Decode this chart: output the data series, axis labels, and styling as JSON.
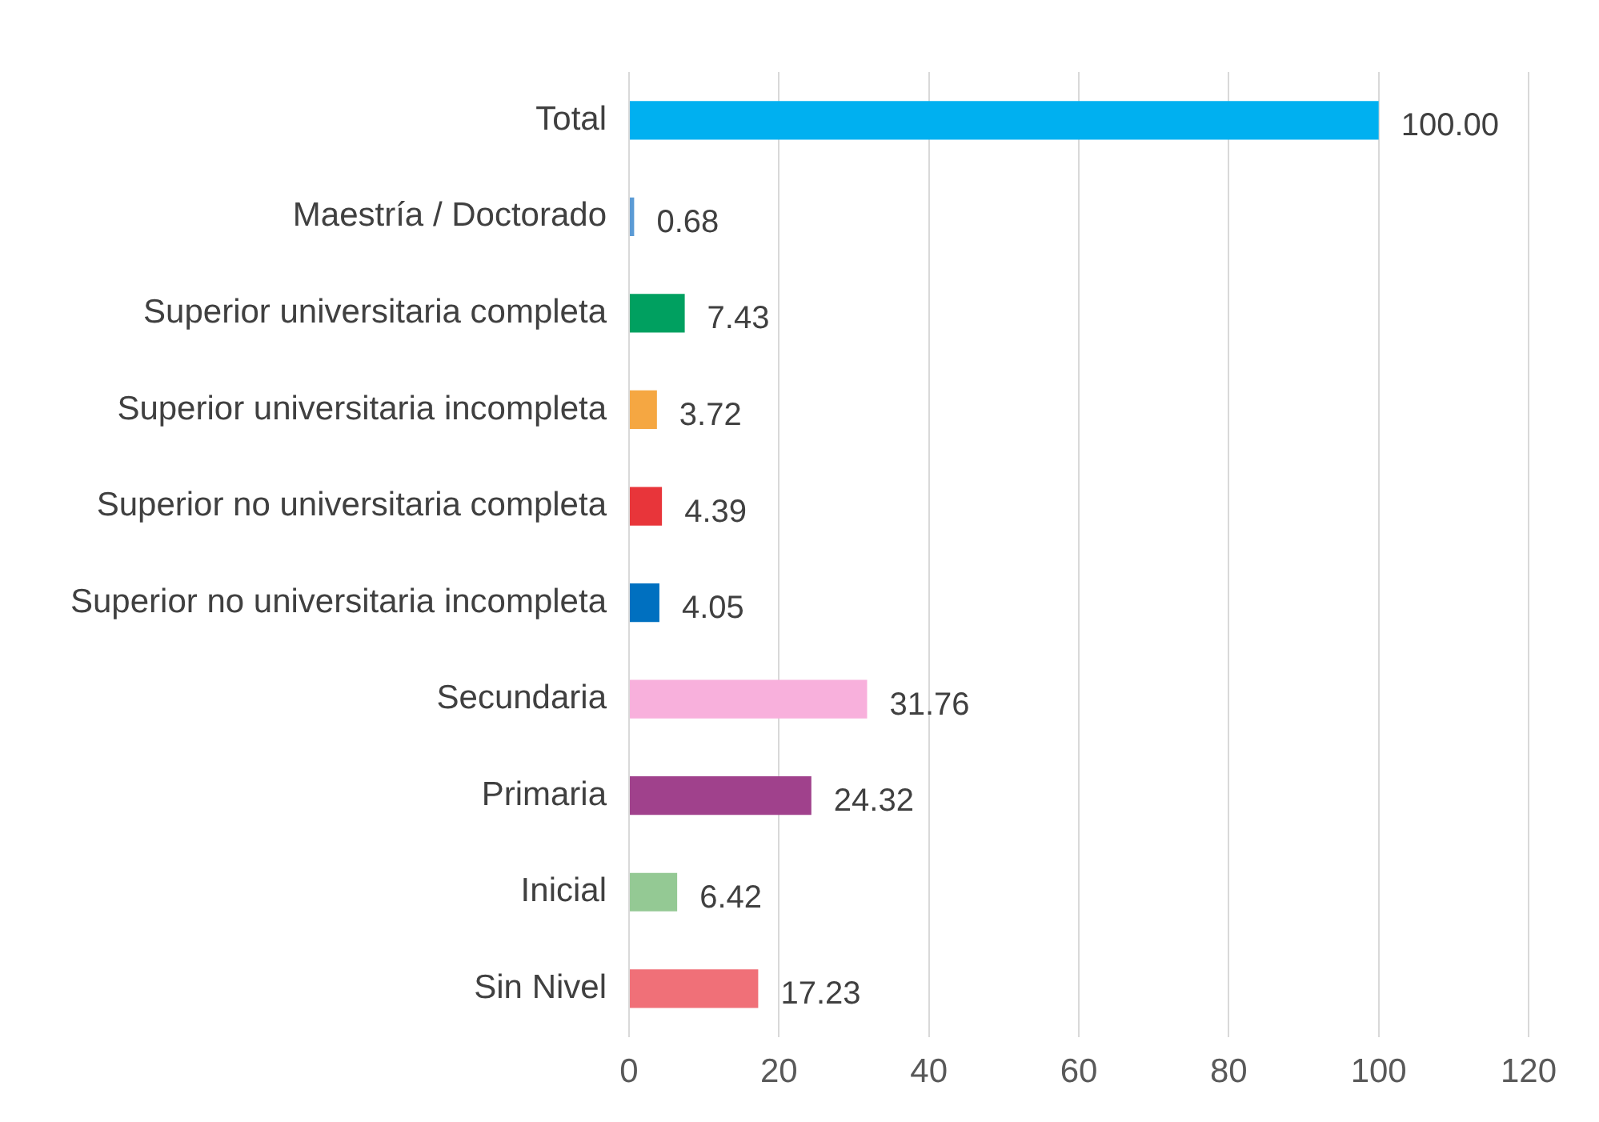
{
  "chart_data": {
    "type": "bar",
    "orientation": "horizontal",
    "categories": [
      "Total",
      "Maestría / Doctorado",
      "Superior universitaria completa",
      "Superior universitaria incompleta",
      "Superior no universitaria completa",
      "Superior no universitaria incompleta",
      "Secundaria",
      "Primaria",
      "Inicial",
      "Sin Nivel"
    ],
    "values": [
      100.0,
      0.68,
      7.43,
      3.72,
      4.39,
      4.05,
      31.76,
      24.32,
      6.42,
      17.23
    ],
    "value_labels": [
      "100.00",
      "0.68",
      "7.43",
      "3.72",
      "4.39",
      "4.05",
      "31.76",
      "24.32",
      "6.42",
      "17.23"
    ],
    "colors": [
      "#00b0f0",
      "#5b9bd5",
      "#00a060",
      "#f5a742",
      "#e8353a",
      "#0070c0",
      "#f8b0dc",
      "#a0418c",
      "#94c994",
      "#f07078"
    ],
    "xlim": [
      0,
      120
    ],
    "xticks": [
      0,
      20,
      40,
      60,
      80,
      100,
      120
    ],
    "grid": "x"
  }
}
